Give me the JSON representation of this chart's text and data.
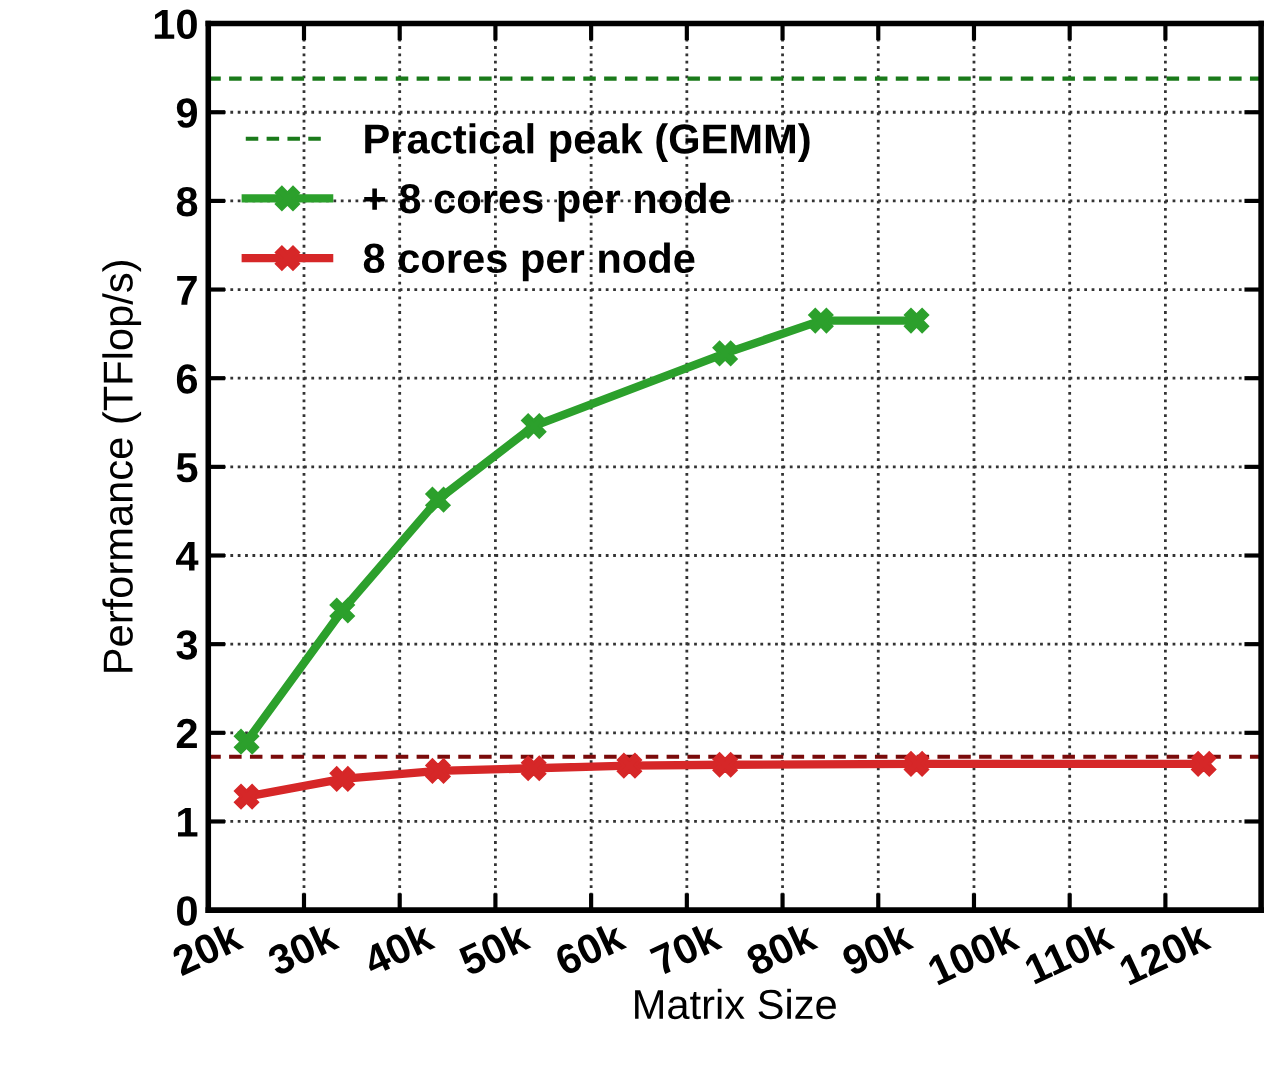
{
  "chart_data": {
    "type": "line",
    "xlabel": "Matrix Size",
    "ylabel": "Performance (TFlop/s)",
    "xlim": [
      20000,
      130000
    ],
    "ylim": [
      0,
      10
    ],
    "xticks": [
      {
        "value": 20000,
        "label": "20k"
      },
      {
        "value": 30000,
        "label": "30k"
      },
      {
        "value": 40000,
        "label": "40k"
      },
      {
        "value": 50000,
        "label": "50k"
      },
      {
        "value": 60000,
        "label": "60k"
      },
      {
        "value": 70000,
        "label": "70k"
      },
      {
        "value": 80000,
        "label": "80k"
      },
      {
        "value": 90000,
        "label": "90k"
      },
      {
        "value": 100000,
        "label": "100k"
      },
      {
        "value": 110000,
        "label": "110k"
      },
      {
        "value": 120000,
        "label": "120k"
      }
    ],
    "yticks": [
      0,
      1,
      2,
      3,
      4,
      5,
      6,
      7,
      8,
      9,
      10
    ],
    "grid": true,
    "legend": "top left",
    "marker": "cross",
    "line_style": "solid",
    "series": [
      {
        "name": "+ 8 cores per node",
        "color": "#2ca02c",
        "x": [
          24000,
          34000,
          44000,
          54000,
          74000,
          84000,
          94000
        ],
        "values": [
          1.9,
          3.38,
          4.63,
          5.46,
          6.28,
          6.65,
          6.65
        ]
      },
      {
        "name": "8 cores per node",
        "color": "#d62728",
        "x": [
          24000,
          34000,
          44000,
          54000,
          64000,
          74000,
          94000,
          124000
        ],
        "values": [
          1.28,
          1.48,
          1.57,
          1.6,
          1.63,
          1.64,
          1.65,
          1.65
        ]
      }
    ],
    "ref_lines": [
      {
        "axis": "y",
        "value": 9.38,
        "label": "Practical peak (GEMM)",
        "color": "#1a7a1a",
        "line_style": "dashed"
      },
      {
        "axis": "y",
        "value": 1.73,
        "color": "#7a0a0a",
        "line_style": "dashed"
      }
    ]
  }
}
